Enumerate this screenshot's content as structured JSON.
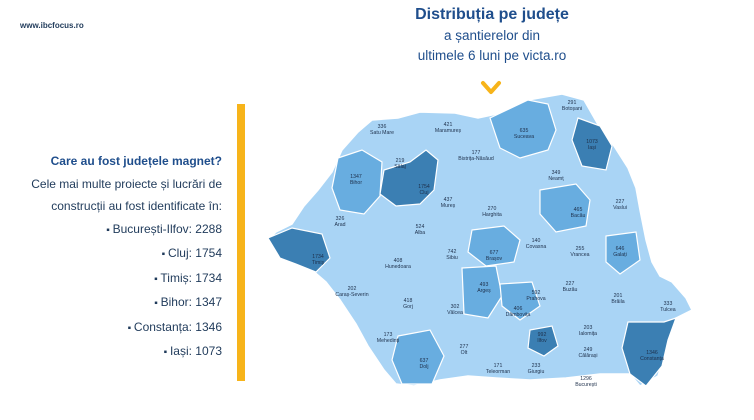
{
  "site": "www.ibcfocus.ro",
  "title": {
    "line1": "Distribuția pe județe",
    "line2": "a șantierelor din",
    "line3": "ultimele 6 luni pe victa.ro"
  },
  "side": {
    "question": "Care au fost  județele magnet?",
    "intro1": "Cele mai multe proiecte și lucrări de",
    "intro2": "construcții au fost identificate în:",
    "items": [
      "București-Ilfov: 2288",
      "Cluj: 1754",
      "Timiș: 1734",
      "Bihor: 1347",
      "Constanța: 1346",
      "Iași: 1073"
    ]
  },
  "colors": {
    "accent": "#f7b41a",
    "title": "#1f4e8c",
    "dark": "#3b7fb3",
    "mid": "#68ade0",
    "light": "#a9d4f5"
  },
  "counties": [
    {
      "name": "Botoșani",
      "value": "291"
    },
    {
      "name": "Satu Mare",
      "value": "336"
    },
    {
      "name": "Maramureș",
      "value": "421"
    },
    {
      "name": "Suceava",
      "value": "635"
    },
    {
      "name": "Iași",
      "value": "1073"
    },
    {
      "name": "Sălaj",
      "value": "219"
    },
    {
      "name": "Bistrița-Năsăud",
      "value": "177"
    },
    {
      "name": "Bihor",
      "value": "1347"
    },
    {
      "name": "Cluj",
      "value": "1754"
    },
    {
      "name": "Neamț",
      "value": "349"
    },
    {
      "name": "Vaslui",
      "value": "227"
    },
    {
      "name": "Mureș",
      "value": "437"
    },
    {
      "name": "Harghita",
      "value": "270"
    },
    {
      "name": "Bacău",
      "value": "465"
    },
    {
      "name": "Arad",
      "value": "326"
    },
    {
      "name": "Alba",
      "value": "524"
    },
    {
      "name": "Covasna",
      "value": "140"
    },
    {
      "name": "Timiș",
      "value": "1734"
    },
    {
      "name": "Hunedoara",
      "value": "408"
    },
    {
      "name": "Sibiu",
      "value": "742"
    },
    {
      "name": "Brașov",
      "value": "677"
    },
    {
      "name": "Vrancea",
      "value": "255"
    },
    {
      "name": "Galați",
      "value": "646"
    },
    {
      "name": "Caraș-Severin",
      "value": "202"
    },
    {
      "name": "Argeș",
      "value": "493"
    },
    {
      "name": "Buzău",
      "value": "227"
    },
    {
      "name": "Prahova",
      "value": "592"
    },
    {
      "name": "Brăila",
      "value": "201"
    },
    {
      "name": "Gorj",
      "value": "418"
    },
    {
      "name": "Vâlcea",
      "value": "302"
    },
    {
      "name": "Dâmbovița",
      "value": "406"
    },
    {
      "name": "Tulcea",
      "value": "333"
    },
    {
      "name": "Ialomița",
      "value": "203"
    },
    {
      "name": "Mehedinți",
      "value": "173"
    },
    {
      "name": "Olt",
      "value": "277"
    },
    {
      "name": "Ilfov",
      "value": "992"
    },
    {
      "name": "Călărași",
      "value": "249"
    },
    {
      "name": "Constanța",
      "value": "1346"
    },
    {
      "name": "Dolj",
      "value": "637"
    },
    {
      "name": "Teleorman",
      "value": "171"
    },
    {
      "name": "Giurgiu",
      "value": "233"
    },
    {
      "name": "București",
      "value": "1296"
    }
  ]
}
